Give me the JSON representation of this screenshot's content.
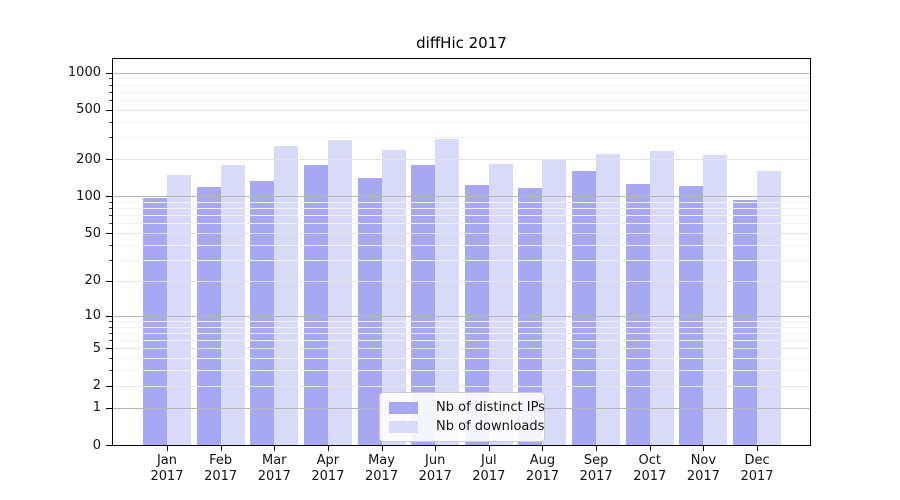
{
  "chart_data": {
    "type": "bar",
    "title": "diffHic 2017",
    "categories": [
      "Jan 2017",
      "Feb 2017",
      "Mar 2017",
      "Apr 2017",
      "May 2017",
      "Jun 2017",
      "Jul 2017",
      "Aug 2017",
      "Sep 2017",
      "Oct 2017",
      "Nov 2017",
      "Dec 2017"
    ],
    "series": [
      {
        "name": "Nb of distinct IPs",
        "color": "#a7a7f2",
        "values": [
          96,
          118,
          133,
          181,
          142,
          180,
          124,
          117,
          160,
          126,
          122,
          93
        ]
      },
      {
        "name": "Nb of downloads",
        "color": "#d9d9f8",
        "values": [
          149,
          178,
          258,
          285,
          239,
          294,
          183,
          202,
          220,
          235,
          216,
          160
        ]
      }
    ],
    "xlabel": "",
    "ylabel": "",
    "y_scale": "log1p",
    "y_ticks": [
      0,
      1,
      2,
      5,
      10,
      20,
      50,
      100,
      200,
      500,
      1000
    ],
    "y_minor_ticks": [
      3,
      4,
      6,
      7,
      8,
      9,
      30,
      40,
      60,
      70,
      80,
      90,
      300,
      400,
      600,
      700,
      800,
      900
    ],
    "y_decade_ticks": [
      1,
      10,
      100,
      1000
    ],
    "ylim": [
      0,
      1290
    ],
    "grid": true,
    "legend_position": "lower center"
  },
  "colors": {
    "distinct_ips": "#a7a7f2",
    "downloads": "#d9d9f8",
    "grid_minor": "#f0f0f0",
    "grid_major": "#e4e4e4",
    "grid_decade": "#b6b6b6",
    "spine": "#000000",
    "background": "#ffffff",
    "text": "#141414"
  }
}
